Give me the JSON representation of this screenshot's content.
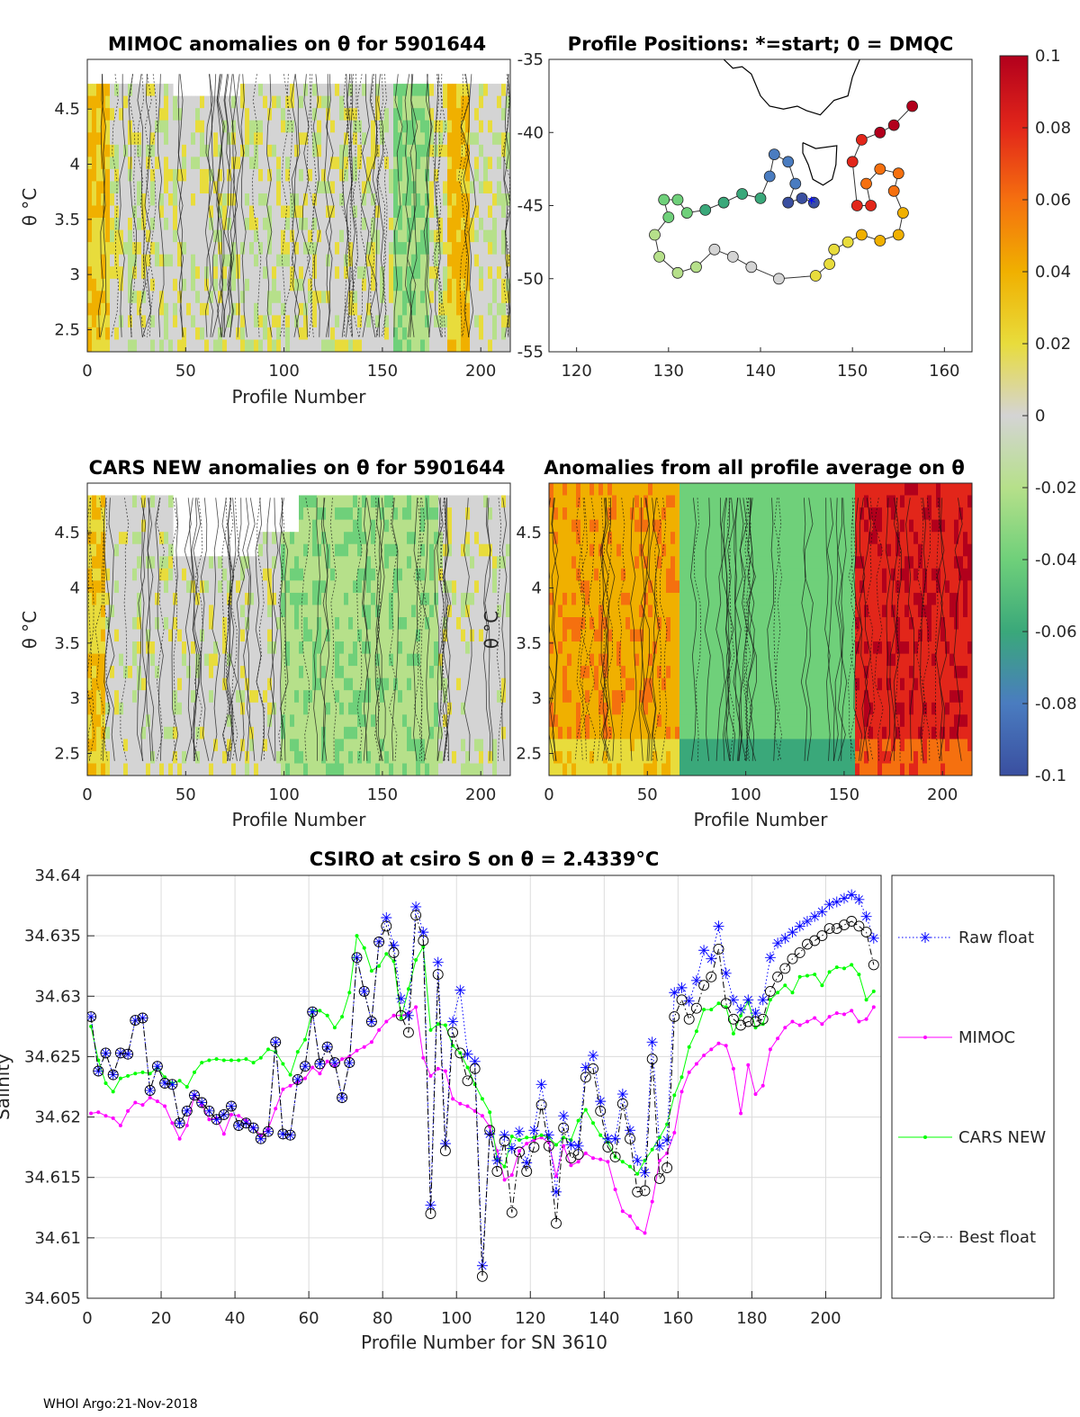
{
  "footer": "WHOI Argo:21-Nov-2018",
  "panels": {
    "mimoc": {
      "title": "MIMOC anomalies on θ  for 5901644",
      "xlabel": "Profile Number",
      "ylabel": "θ °C",
      "xticks": [
        "0",
        "50",
        "100",
        "150",
        "200"
      ],
      "yticks": [
        "2.5",
        "3",
        "3.5",
        "4",
        "4.5"
      ]
    },
    "positions": {
      "title": "Profile Positions: *=start; 0 = DMQC",
      "xticks": [
        "120",
        "130",
        "140",
        "150",
        "160"
      ],
      "yticks": [
        "-35",
        "-40",
        "-45",
        "-50",
        "-55"
      ]
    },
    "cars": {
      "title": "CARS NEW anomalies on θ for 5901644",
      "xlabel": "Profile Number",
      "ylabel": "θ °C",
      "xticks": [
        "0",
        "50",
        "100",
        "150",
        "200"
      ],
      "yticks": [
        "2.5",
        "3",
        "3.5",
        "4",
        "4.5"
      ]
    },
    "allavg": {
      "title": "Anomalies from all profile average on θ",
      "xlabel": "Profile Number",
      "ylabel": "θ °C",
      "xticks": [
        "0",
        "50",
        "100",
        "150",
        "200"
      ],
      "yticks": [
        "2.5",
        "3",
        "3.5",
        "4",
        "4.5"
      ]
    },
    "colorbar": {
      "ticks": [
        "0.1",
        "0.08",
        "0.06",
        "0.04",
        "0.02",
        "0",
        "-0.02",
        "-0.04",
        "-0.06",
        "-0.08",
        "-0.1"
      ],
      "colors": [
        "#b2001c",
        "#e2261a",
        "#f5700f",
        "#f0b000",
        "#e8dc3c",
        "#d4d4d4",
        "#b6e08a",
        "#6fd07a",
        "#3aa87a",
        "#4a7cc0",
        "#3a4fa0"
      ]
    }
  },
  "chart_data": {
    "type": "line",
    "title": "CSIRO at csiro S on θ = 2.4339°C",
    "xlabel": "Profile Number for SN 3610",
    "ylabel": "Salinity",
    "xlim": [
      0,
      215
    ],
    "ylim": [
      34.605,
      34.64
    ],
    "xticks": [
      "0",
      "20",
      "40",
      "60",
      "80",
      "100",
      "120",
      "140",
      "160",
      "180",
      "200"
    ],
    "yticks": [
      "34.64",
      "34.635",
      "34.63",
      "34.625",
      "34.62",
      "34.615",
      "34.61",
      "34.605"
    ],
    "legend_position": "right",
    "series": [
      {
        "name": "Raw float",
        "color": "#0000ff",
        "style": "dotted",
        "marker": "star",
        "x": [
          1,
          3,
          5,
          7,
          9,
          11,
          13,
          15,
          17,
          19,
          21,
          23,
          25,
          27,
          29,
          31,
          33,
          35,
          37,
          39,
          41,
          43,
          45,
          47,
          49,
          51,
          53,
          55,
          57,
          59,
          61,
          63,
          65,
          67,
          69,
          71,
          73,
          75,
          77,
          79,
          81,
          83,
          85,
          87,
          89,
          91,
          93,
          95,
          97,
          99,
          101,
          103,
          105,
          107,
          109,
          111,
          113,
          115,
          117,
          119,
          121,
          123,
          125,
          127,
          129,
          131,
          133,
          135,
          137,
          139,
          141,
          143,
          145,
          147,
          149,
          151,
          153,
          155,
          157,
          159,
          161,
          163,
          165,
          167,
          169,
          171,
          173,
          175,
          177,
          179,
          181,
          183,
          185,
          187,
          189,
          191,
          193,
          195,
          197,
          199,
          201,
          203,
          205,
          207,
          209,
          211,
          213
        ],
        "y": [
          34.6283,
          34.6238,
          34.6253,
          34.6235,
          34.6253,
          34.6252,
          34.628,
          34.6282,
          34.6222,
          34.6242,
          34.6228,
          34.6227,
          34.6195,
          34.6205,
          34.6218,
          34.6212,
          34.6205,
          34.6198,
          34.6202,
          34.6209,
          34.6193,
          34.6195,
          34.6191,
          34.6182,
          34.6188,
          34.6262,
          34.6186,
          34.6185,
          34.6231,
          34.6242,
          34.6287,
          34.6244,
          34.6258,
          34.6245,
          34.6216,
          34.6245,
          34.6332,
          34.6304,
          34.6279,
          34.6345,
          34.6365,
          34.6342,
          34.6298,
          34.6284,
          34.6374,
          34.6353,
          34.6127,
          34.6328,
          34.6178,
          34.6279,
          34.6305,
          34.6252,
          34.6246,
          34.6077,
          34.6186,
          34.6164,
          34.6185,
          34.6174,
          34.6188,
          34.6162,
          34.6189,
          34.6227,
          34.6185,
          34.6138,
          34.6201,
          34.6177,
          34.6176,
          34.6241,
          34.6251,
          34.6213,
          34.6182,
          34.6182,
          34.6219,
          34.6189,
          34.6164,
          34.6154,
          34.6262,
          34.6176,
          34.6181,
          34.6303,
          34.6307,
          34.6296,
          34.6313,
          34.6338,
          34.6331,
          34.6358,
          34.6319,
          34.6297,
          34.6289,
          34.6297,
          34.6286,
          34.6297,
          34.6332,
          34.6344,
          34.6348,
          34.6353,
          34.6358,
          34.6362,
          34.6366,
          34.637,
          34.6376,
          34.6378,
          34.6381,
          34.6384,
          34.638,
          34.6366,
          34.6348
        ]
      },
      {
        "name": "MIMOC",
        "color": "#ff00ff",
        "style": "solid",
        "marker": "dot",
        "x": [
          1,
          3,
          5,
          7,
          9,
          11,
          13,
          15,
          17,
          19,
          21,
          23,
          25,
          27,
          29,
          31,
          33,
          35,
          37,
          39,
          41,
          43,
          45,
          47,
          49,
          51,
          53,
          55,
          57,
          59,
          61,
          63,
          65,
          67,
          69,
          71,
          73,
          75,
          77,
          79,
          81,
          83,
          85,
          87,
          89,
          91,
          93,
          95,
          97,
          99,
          101,
          103,
          105,
          107,
          109,
          111,
          113,
          115,
          117,
          119,
          121,
          123,
          125,
          127,
          129,
          131,
          133,
          135,
          137,
          139,
          141,
          143,
          145,
          147,
          149,
          151,
          153,
          155,
          157,
          159,
          161,
          163,
          165,
          167,
          169,
          171,
          173,
          175,
          177,
          179,
          181,
          183,
          185,
          187,
          189,
          191,
          193,
          195,
          197,
          199,
          201,
          203,
          205,
          207,
          209,
          211,
          213
        ],
        "y": [
          34.6203,
          34.6204,
          34.6201,
          34.6199,
          34.6193,
          34.6205,
          34.6212,
          34.621,
          34.6216,
          34.6213,
          34.6209,
          34.6195,
          34.6182,
          34.6193,
          34.6218,
          34.621,
          34.6198,
          34.6199,
          34.6186,
          34.6202,
          34.6201,
          34.6197,
          34.6191,
          34.6185,
          34.619,
          34.6207,
          34.6223,
          34.6226,
          34.6229,
          34.6232,
          34.6241,
          34.6236,
          34.6246,
          34.6242,
          34.6248,
          34.625,
          34.6255,
          34.6258,
          34.6262,
          34.6272,
          34.6279,
          34.6284,
          34.6284,
          34.6286,
          34.6291,
          34.6249,
          34.6234,
          34.624,
          34.6238,
          34.6215,
          34.6211,
          34.6209,
          34.6205,
          34.6201,
          34.6192,
          34.6172,
          34.6148,
          34.6152,
          34.6172,
          34.6178,
          34.6181,
          34.6183,
          34.6179,
          34.6151,
          34.6176,
          34.616,
          34.6163,
          34.617,
          34.6166,
          34.6165,
          34.6163,
          34.614,
          34.6122,
          34.6118,
          34.6108,
          34.6104,
          34.613,
          34.6164,
          34.617,
          34.6187,
          34.6221,
          34.6237,
          34.6244,
          34.6251,
          34.6256,
          34.6261,
          34.6259,
          34.624,
          34.6203,
          34.6243,
          34.6219,
          34.6226,
          34.6256,
          34.6265,
          34.6274,
          34.6279,
          34.6276,
          34.6279,
          34.6282,
          34.6277,
          34.6283,
          34.6286,
          34.6285,
          34.6288,
          34.6279,
          34.6281,
          34.6291
        ]
      },
      {
        "name": "CARS NEW",
        "color": "#00ff00",
        "style": "solid",
        "marker": "dot",
        "x": [
          1,
          3,
          5,
          7,
          9,
          11,
          13,
          15,
          17,
          19,
          21,
          23,
          25,
          27,
          29,
          31,
          33,
          35,
          37,
          39,
          41,
          43,
          45,
          47,
          49,
          51,
          53,
          55,
          57,
          59,
          61,
          63,
          65,
          67,
          69,
          71,
          73,
          75,
          77,
          79,
          81,
          83,
          85,
          87,
          89,
          91,
          93,
          95,
          97,
          99,
          101,
          103,
          105,
          107,
          109,
          111,
          113,
          115,
          117,
          119,
          121,
          123,
          125,
          127,
          129,
          131,
          133,
          135,
          137,
          139,
          141,
          143,
          145,
          147,
          149,
          151,
          153,
          155,
          157,
          159,
          161,
          163,
          165,
          167,
          169,
          171,
          173,
          175,
          177,
          179,
          181,
          183,
          185,
          187,
          189,
          191,
          193,
          195,
          197,
          199,
          201,
          203,
          205,
          207,
          209,
          211,
          213
        ],
        "y": [
          34.6275,
          34.6247,
          34.6228,
          34.6221,
          34.6232,
          34.6234,
          34.6236,
          34.6237,
          34.6236,
          34.6241,
          34.6233,
          34.6228,
          34.623,
          34.6225,
          34.6237,
          34.6245,
          34.6247,
          34.6248,
          34.6247,
          34.6247,
          34.6247,
          34.6248,
          34.6245,
          34.6249,
          34.6256,
          34.6254,
          34.6244,
          34.6235,
          34.6254,
          34.6264,
          34.6288,
          34.6288,
          34.6284,
          34.6274,
          34.6283,
          34.6303,
          34.635,
          34.634,
          34.6321,
          34.6325,
          34.6335,
          34.6329,
          34.6282,
          34.6306,
          34.633,
          34.6341,
          34.6272,
          34.6277,
          34.6276,
          34.6259,
          34.6253,
          34.6241,
          34.6227,
          34.6215,
          34.6204,
          34.6165,
          34.6159,
          34.6184,
          34.6181,
          34.6183,
          34.6183,
          34.6185,
          34.6183,
          34.6177,
          34.6183,
          34.6181,
          34.6197,
          34.6206,
          34.6195,
          34.6185,
          34.6179,
          34.6167,
          34.6163,
          34.6159,
          34.6153,
          34.6164,
          34.6173,
          34.6183,
          34.6194,
          34.6218,
          34.6233,
          34.6258,
          34.6271,
          34.6289,
          34.6289,
          34.6294,
          34.6291,
          34.6269,
          34.6284,
          34.6296,
          34.6274,
          34.6277,
          34.6297,
          34.6303,
          34.6309,
          34.6303,
          34.6316,
          34.6317,
          34.6318,
          34.6309,
          34.632,
          34.6324,
          34.6323,
          34.6326,
          34.6318,
          34.6297,
          34.6304
        ]
      },
      {
        "name": "Best float",
        "color": "#000000",
        "style": "dashdot",
        "marker": "circle",
        "x": [
          1,
          3,
          5,
          7,
          9,
          11,
          13,
          15,
          17,
          19,
          21,
          23,
          25,
          27,
          29,
          31,
          33,
          35,
          37,
          39,
          41,
          43,
          45,
          47,
          49,
          51,
          53,
          55,
          57,
          59,
          61,
          63,
          65,
          67,
          69,
          71,
          73,
          75,
          77,
          79,
          81,
          83,
          85,
          87,
          89,
          91,
          93,
          95,
          97,
          99,
          101,
          103,
          105,
          107,
          109,
          111,
          113,
          115,
          117,
          119,
          121,
          123,
          125,
          127,
          129,
          131,
          133,
          135,
          137,
          139,
          141,
          143,
          145,
          147,
          149,
          151,
          153,
          155,
          157,
          159,
          161,
          163,
          165,
          167,
          169,
          171,
          173,
          175,
          177,
          179,
          181,
          183,
          185,
          187,
          189,
          191,
          193,
          195,
          197,
          199,
          201,
          203,
          205,
          207,
          209,
          211,
          213
        ],
        "y": [
          34.6283,
          34.6238,
          34.6253,
          34.6235,
          34.6253,
          34.6252,
          34.628,
          34.6282,
          34.6222,
          34.6242,
          34.6228,
          34.6227,
          34.6195,
          34.6205,
          34.6218,
          34.6212,
          34.6205,
          34.6198,
          34.6202,
          34.6209,
          34.6193,
          34.6195,
          34.6191,
          34.6182,
          34.6188,
          34.6262,
          34.6186,
          34.6185,
          34.6231,
          34.6242,
          34.6287,
          34.6244,
          34.6258,
          34.6245,
          34.6216,
          34.6245,
          34.6332,
          34.6304,
          34.6279,
          34.6345,
          34.6358,
          34.6336,
          34.6284,
          34.627,
          34.6367,
          34.6346,
          34.612,
          34.6318,
          34.6172,
          34.627,
          34.6253,
          34.623,
          34.624,
          34.6068,
          34.6189,
          34.6155,
          34.618,
          34.6121,
          34.6171,
          34.6155,
          34.6175,
          34.621,
          34.6176,
          34.6112,
          34.6191,
          34.6166,
          34.6169,
          34.6233,
          34.624,
          34.6205,
          34.6175,
          34.6167,
          34.6211,
          34.6182,
          34.6138,
          34.6139,
          34.6248,
          34.6149,
          34.6158,
          34.6283,
          34.6297,
          34.6281,
          34.629,
          34.6309,
          34.6316,
          34.6339,
          34.6294,
          34.6281,
          34.6276,
          34.6279,
          34.6279,
          34.6281,
          34.6304,
          34.6316,
          34.6323,
          34.6331,
          34.6336,
          34.6343,
          34.6346,
          34.635,
          34.6356,
          34.6356,
          34.6359,
          34.6362,
          34.6358,
          34.6353,
          34.6326
        ]
      }
    ]
  }
}
